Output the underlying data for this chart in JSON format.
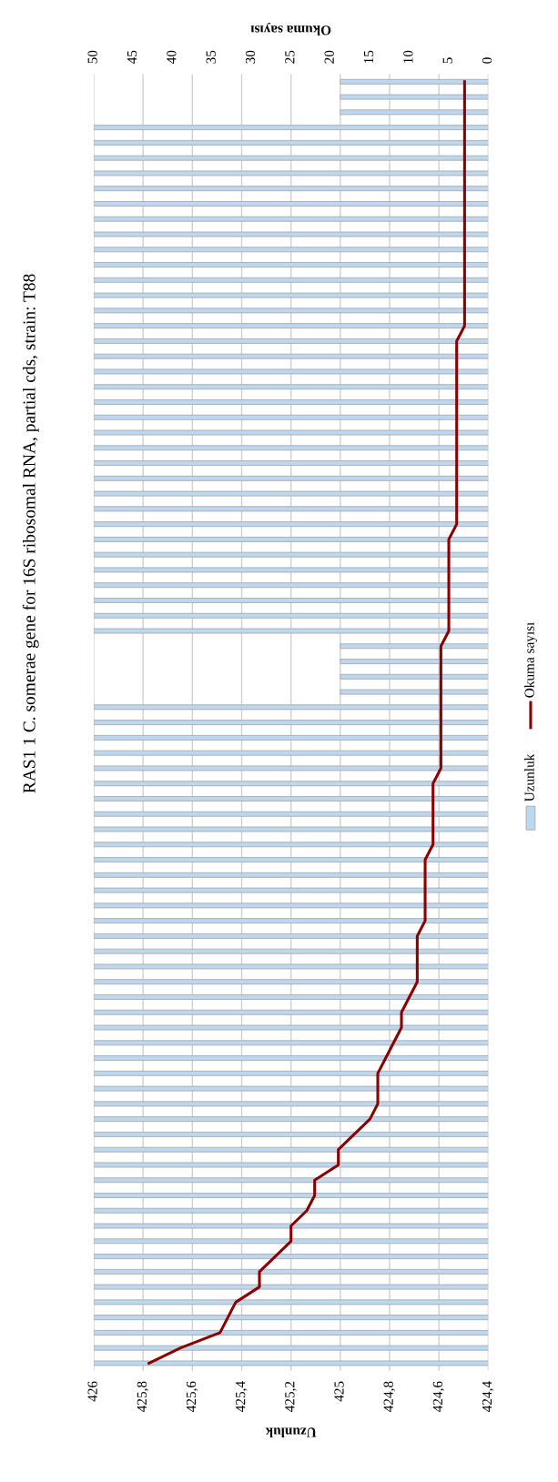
{
  "chart_data": {
    "type": "bar",
    "orientation": "horizontal",
    "title": "RAS1 1 C. somerae gene for 16S ribosomal RNA, partial cds, strain: T88",
    "xlabel": "Uzunluk",
    "x2label": "Okuma sayısı",
    "categories": [
      null,
      null,
      null,
      null,
      null,
      null,
      null,
      null,
      null,
      null,
      null,
      null,
      null,
      null,
      null,
      null,
      null,
      null,
      null,
      null,
      null,
      null,
      null,
      null,
      null,
      null,
      null,
      null,
      null,
      null,
      null,
      null,
      null,
      null,
      null,
      null,
      null,
      null,
      null,
      null,
      null,
      null,
      null,
      null,
      null,
      null,
      null,
      null,
      null,
      null,
      null,
      null,
      null,
      null,
      null,
      null,
      null,
      null,
      null,
      null,
      null,
      null,
      null,
      null,
      null,
      null,
      null,
      null,
      null,
      null,
      null,
      null,
      null,
      null,
      null,
      null,
      null,
      null,
      null,
      null,
      null,
      null,
      null,
      null,
      null
    ],
    "series": [
      {
        "name": "Uzunluk",
        "color": "#bdd7ee",
        "values": [
          425,
          425,
          425,
          426,
          426,
          426,
          426,
          426,
          426,
          426,
          426,
          426,
          426,
          426,
          426,
          426,
          426,
          426,
          426,
          426,
          426,
          426,
          426,
          426,
          426,
          426,
          426,
          426,
          426,
          426,
          426,
          426,
          426,
          426,
          426,
          426,
          426,
          425,
          425,
          425,
          425,
          426,
          426,
          426,
          426,
          426,
          426,
          426,
          426,
          426,
          426,
          426,
          426,
          426,
          426,
          426,
          426,
          426,
          426,
          426,
          426,
          426,
          426,
          426,
          426,
          426,
          426,
          426,
          426,
          426,
          426,
          426,
          426,
          426,
          426,
          426,
          426,
          426,
          426,
          426,
          426,
          426,
          426,
          426,
          426
        ]
      },
      {
        "name": "Okuma sayısı",
        "type": "line",
        "axis": "x2",
        "color": "#8b0000",
        "values": [
          3,
          3,
          3,
          3,
          3,
          3,
          3,
          3,
          3,
          3,
          3,
          3,
          3,
          3,
          3,
          3,
          3,
          4,
          4,
          4,
          4,
          4,
          4,
          4,
          4,
          4,
          4,
          4,
          4,
          4,
          5,
          5,
          5,
          5,
          5,
          5,
          5,
          6,
          6,
          6,
          6,
          6,
          6,
          6,
          6,
          6,
          7,
          7,
          7,
          7,
          7,
          8,
          8,
          8,
          8,
          8,
          9,
          9,
          9,
          9,
          10,
          11,
          11,
          12,
          13,
          14,
          14,
          14,
          15,
          17,
          19,
          19,
          22,
          22,
          23,
          25,
          25,
          27,
          29,
          29,
          32,
          33,
          34,
          39,
          43
        ]
      }
    ],
    "xlim": [
      426,
      424.4
    ],
    "xticks": [
      426,
      {
        "value": 425.8,
        "label": "425,8"
      },
      {
        "value": 425.6,
        "label": "425,6"
      },
      {
        "value": 425.4,
        "label": "425,4"
      },
      {
        "value": 425.2,
        "label": "425,2"
      },
      425,
      {
        "value": 424.8,
        "label": "424,8"
      },
      {
        "value": 424.6,
        "label": "424,6"
      },
      {
        "value": 424.4,
        "label": "424,4"
      }
    ],
    "x2lim": [
      50,
      0
    ],
    "x2ticks": [
      50,
      45,
      40,
      35,
      30,
      25,
      20,
      15,
      10,
      5,
      0
    ],
    "grid": "x",
    "legend": "right"
  }
}
